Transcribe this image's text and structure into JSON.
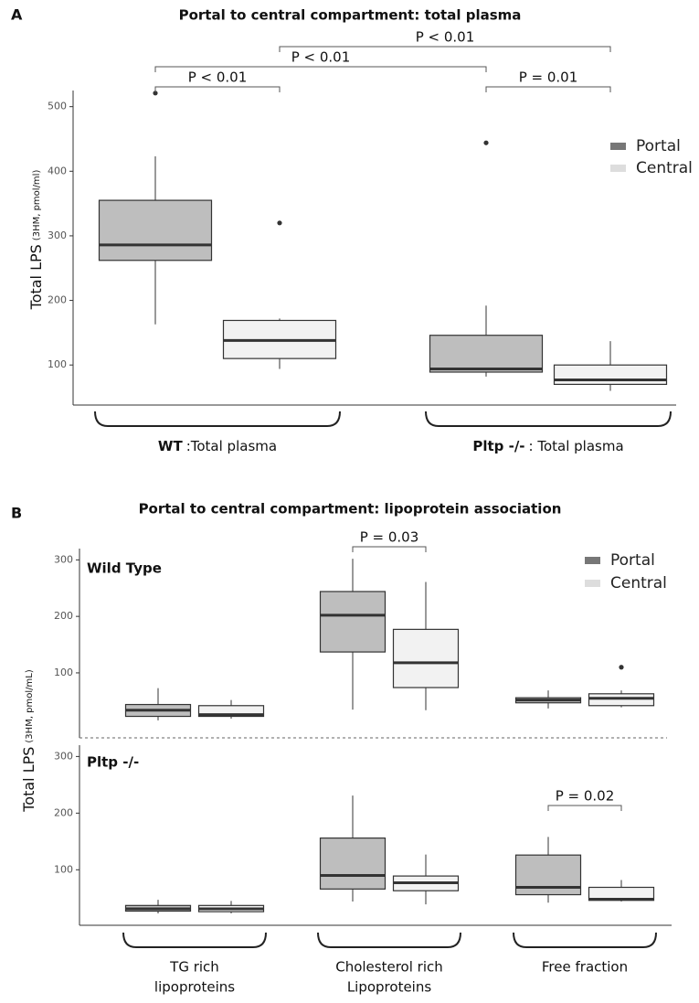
{
  "chart_data": [
    {
      "type": "box",
      "panel": "A",
      "title": "Portal to central compartment: total plasma",
      "ylabel": "Total LPS",
      "ylabel_sub": "(3HM, pmol/ml)",
      "categories": [
        {
          "name": "WT",
          "detail": ":Total plasma"
        },
        {
          "name": "Pltp -/-",
          "detail": ": Total plasma"
        }
      ],
      "ylim": [
        38,
        525
      ],
      "yticks": [
        100,
        200,
        300,
        400,
        500
      ],
      "series": [
        {
          "name": "Portal",
          "color": "#bebebe",
          "legend_color": "#777777",
          "boxes": [
            {
              "whislo": 163,
              "q1": 262,
              "med": 286,
              "q3": 355,
              "whishi": 423,
              "fliers": [
                521
              ]
            },
            {
              "whislo": 82,
              "q1": 89,
              "med": 94,
              "q3": 146,
              "whishi": 192,
              "fliers": [
                444
              ]
            }
          ]
        },
        {
          "name": "Central",
          "color": "#f2f2f2",
          "legend_color": "#dddddd",
          "boxes": [
            {
              "whislo": 94,
              "q1": 110,
              "med": 138,
              "q3": 169,
              "whishi": 172,
              "fliers": [
                320
              ]
            },
            {
              "whislo": 60,
              "q1": 70,
              "med": 77,
              "q3": 100,
              "whishi": 137,
              "fliers": []
            }
          ]
        }
      ],
      "comparisons": [
        {
          "label": "P < 0.01",
          "between": [
            [
              0,
              0
            ],
            [
              0,
              1
            ]
          ]
        },
        {
          "label": "P < 0.01",
          "between": [
            [
              0,
              0
            ],
            [
              1,
              0
            ]
          ]
        },
        {
          "label": "P < 0.01",
          "between": [
            [
              0,
              1
            ],
            [
              1,
              1
            ]
          ]
        },
        {
          "label": "P = 0.01",
          "between": [
            [
              1,
              0
            ],
            [
              1,
              1
            ]
          ]
        }
      ]
    },
    {
      "type": "box",
      "panel": "B",
      "title": "Portal to central compartment: lipoprotein association",
      "ylabel": "Total LPS",
      "ylabel_sub": "(3HM, pmol/mL)",
      "categories": [
        [
          "TG rich",
          "lipoproteins"
        ],
        [
          "Cholesterol rich",
          "Lipoproteins"
        ],
        [
          "Free fraction"
        ]
      ],
      "series": [
        {
          "name": "Portal",
          "color": "#bebebe",
          "legend_color": "#777777"
        },
        {
          "name": "Central",
          "color": "#f2f2f2",
          "legend_color": "#dddddd"
        }
      ],
      "facets": [
        {
          "label": "Wild Type",
          "ylim": [
            -15,
            320
          ],
          "yticks": [
            100,
            200,
            300
          ],
          "boxes": [
            [
              {
                "whislo": 16,
                "q1": 23,
                "med": 34,
                "q3": 44,
                "whishi": 73,
                "fliers": []
              },
              {
                "whislo": 35,
                "q1": 137,
                "med": 202,
                "q3": 244,
                "whishi": 302,
                "fliers": []
              },
              {
                "whislo": 37,
                "q1": 47,
                "med": 52,
                "q3": 56,
                "whishi": 69,
                "fliers": []
              }
            ],
            [
              {
                "whislo": 19,
                "q1": 23,
                "med": 26,
                "q3": 42,
                "whishi": 52,
                "fliers": []
              },
              {
                "whislo": 34,
                "q1": 74,
                "med": 118,
                "q3": 177,
                "whishi": 261,
                "fliers": []
              },
              {
                "whislo": 39,
                "q1": 42,
                "med": 55,
                "q3": 63,
                "whishi": 69,
                "fliers": [
                  110
                ]
              }
            ]
          ],
          "comparisons": [
            {
              "label": "P = 0.03",
              "between": [
                [
                  1,
                  0
                ],
                [
                  1,
                  1
                ]
              ]
            }
          ]
        },
        {
          "label": "Pltp -/-",
          "ylim": [
            2,
            320
          ],
          "yticks": [
            100,
            200,
            300
          ],
          "boxes": [
            [
              {
                "whislo": 23,
                "q1": 27,
                "med": 31,
                "q3": 37,
                "whishi": 47,
                "fliers": []
              },
              {
                "whislo": 44,
                "q1": 66,
                "med": 90,
                "q3": 156,
                "whishi": 231,
                "fliers": []
              },
              {
                "whislo": 42,
                "q1": 56,
                "med": 69,
                "q3": 126,
                "whishi": 158,
                "fliers": []
              }
            ],
            [
              {
                "whislo": 23,
                "q1": 26,
                "med": 31,
                "q3": 37,
                "whishi": 45,
                "fliers": []
              },
              {
                "whislo": 39,
                "q1": 63,
                "med": 77,
                "q3": 89,
                "whishi": 127,
                "fliers": []
              },
              {
                "whislo": 44,
                "q1": 46,
                "med": 48,
                "q3": 69,
                "whishi": 82,
                "fliers": []
              }
            ]
          ],
          "comparisons": [
            {
              "label": "P = 0.02",
              "between": [
                [
                  2,
                  0
                ],
                [
                  2,
                  1
                ]
              ]
            }
          ]
        }
      ]
    }
  ]
}
